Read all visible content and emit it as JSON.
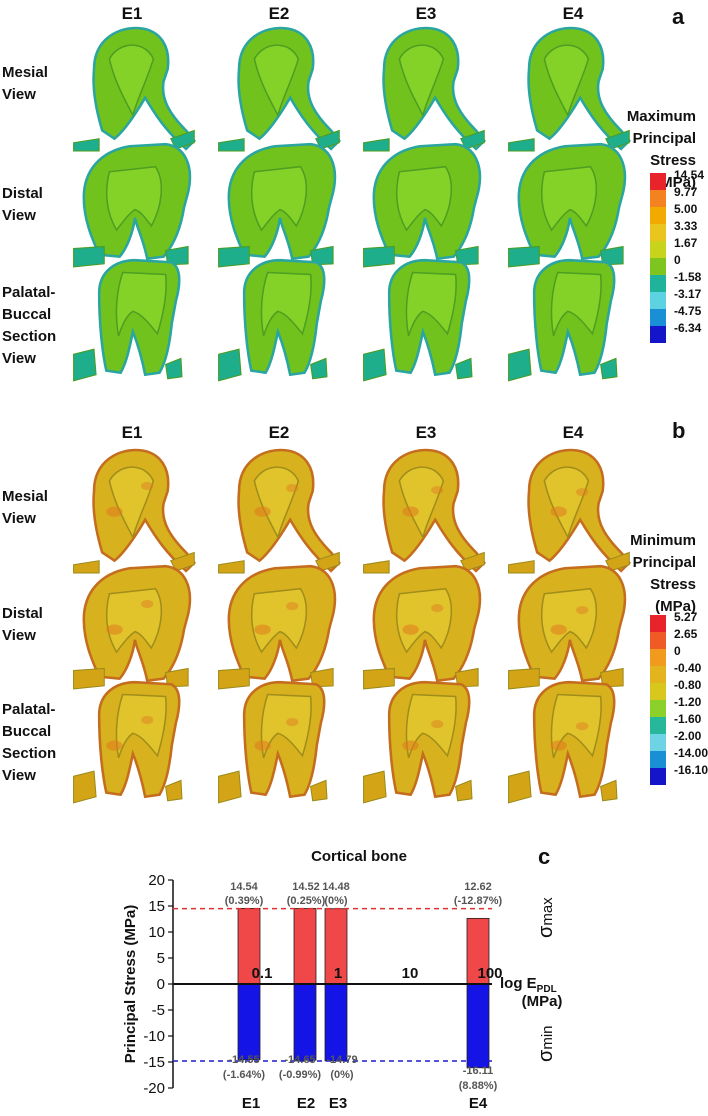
{
  "panel_a": {
    "letter": "a",
    "columns": [
      "E1",
      "E2",
      "E3",
      "E4"
    ],
    "rows": [
      {
        "line1": "Mesial",
        "line2": "View"
      },
      {
        "line1": "Distal",
        "line2": "View"
      },
      {
        "line1": "Palatal-",
        "line2": "Buccal",
        "line3": "Section",
        "line4": "View"
      }
    ],
    "legend": {
      "title_lines": [
        "Maximum",
        "Principal",
        "Stress",
        "(MPa)"
      ],
      "ticks": [
        "14.54",
        "9.77",
        "5.00",
        "3.33",
        "1.67",
        "0",
        "-1.58",
        "-3.17",
        "-4.75",
        "-6.34"
      ],
      "colors": [
        "#e8232a",
        "#f58220",
        "#f2a900",
        "#e9c51e",
        "#c8d41c",
        "#7fc520",
        "#1fb39b",
        "#5dd2e0",
        "#1a8fd6",
        "#1414c8"
      ]
    }
  },
  "panel_b": {
    "letter": "b",
    "columns": [
      "E1",
      "E2",
      "E3",
      "E4"
    ],
    "rows": [
      {
        "line1": "Mesial",
        "line2": "View"
      },
      {
        "line1": "Distal",
        "line2": "View"
      },
      {
        "line1": "Palatal-",
        "line2": "Buccal",
        "line3": "Section",
        "line4": "View"
      }
    ],
    "legend": {
      "title_lines": [
        "Minimum",
        "Principal",
        "Stress",
        "(MPa)"
      ],
      "ticks": [
        "5.27",
        "2.65",
        "0",
        "-0.40",
        "-0.80",
        "-1.20",
        "-1.60",
        "-2.00",
        "-14.00",
        "-16.10"
      ],
      "colors": [
        "#e8232a",
        "#f05a24",
        "#f29a1d",
        "#e3b41e",
        "#d8c81e",
        "#8cd12a",
        "#27b79a",
        "#6fd3e6",
        "#1a8fd6",
        "#1414c8"
      ]
    }
  },
  "panel_c": {
    "letter": "c",
    "chart_data": {
      "type": "bar",
      "title": "Cortical bone",
      "ylabel": "Principal Stress (MPa)",
      "ylim": [
        -20,
        20
      ],
      "yticks": [
        20,
        15,
        10,
        5,
        0,
        -5,
        -10,
        -15,
        -20
      ],
      "x_axis_label_main": "log E",
      "x_axis_label_sub": "PDL",
      "x_axis_label_unit": "(MPa)",
      "x_axis_ticks": [
        "0.1",
        "1",
        "10",
        "100"
      ],
      "categories": [
        "E1",
        "E2",
        "E3",
        "E4"
      ],
      "series": [
        {
          "name": "σmax",
          "values": [
            14.54,
            14.52,
            14.48,
            12.62
          ],
          "labels": [
            "14.54",
            "14.52",
            "14.48",
            "12.62"
          ],
          "pct": [
            "(0.39%)",
            "(0.25%)",
            "(0%)",
            "(-12.87%)"
          ],
          "color": "#f04848"
        },
        {
          "name": "σmin",
          "values": [
            -14.55,
            -14.65,
            -14.79,
            -16.11
          ],
          "labels": [
            "-14.55",
            "-14.65",
            "-14.79",
            "-16.11"
          ],
          "pct": [
            "(-1.64%)",
            "(-0.99%)",
            "(0%)",
            "(8.88%)"
          ],
          "color": "#1414e6"
        }
      ],
      "reference_lines": [
        {
          "value": 14.5,
          "color": "#e03030"
        },
        {
          "value": -14.8,
          "color": "#1a1ad0"
        }
      ],
      "side_labels": {
        "max_main": "σ",
        "max_sub": "max",
        "min_main": "σ",
        "min_sub": "min"
      }
    }
  }
}
